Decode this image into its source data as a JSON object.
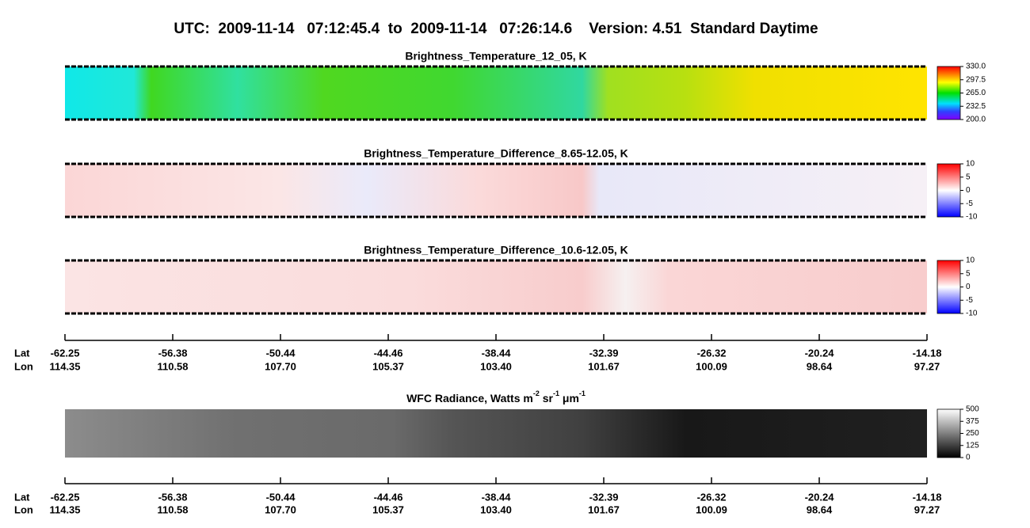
{
  "title": "UTC:  2009-11-14   07:12:45.4  to  2009-11-14   07:26:14.6    Version: 4.51  Standard Daytime",
  "panels": [
    {
      "title": "Brightness_Temperature_12_05, K",
      "colorbar_labels": [
        "330.0",
        "297.5",
        "265.0",
        "232.5",
        "200.0"
      ]
    },
    {
      "title": "Brightness_Temperature_Difference_8.65-12.05, K",
      "colorbar_labels": [
        "10",
        "5",
        "0",
        "-5",
        "-10"
      ]
    },
    {
      "title": "Brightness_Temperature_Difference_10.6-12.05, K",
      "colorbar_labels": [
        "10",
        "5",
        "0",
        "-5",
        "-10"
      ]
    }
  ],
  "wfc_panel": {
    "title_parts": [
      "WFC Radiance, Watts m",
      "-2",
      " sr",
      "-1",
      " μm",
      "-1"
    ],
    "colorbar_labels": [
      "500",
      "375",
      "250",
      "125",
      "0"
    ]
  },
  "axis": {
    "lat_label": "Lat",
    "lon_label": "Lon",
    "lat": [
      "-62.25",
      "-56.38",
      "-50.44",
      "-44.46",
      "-38.44",
      "-32.39",
      "-26.32",
      "-20.24",
      "-14.18"
    ],
    "lon": [
      "114.35",
      "110.58",
      "107.70",
      "105.37",
      "103.40",
      "101.67",
      "100.09",
      "98.64",
      "97.27"
    ]
  }
}
